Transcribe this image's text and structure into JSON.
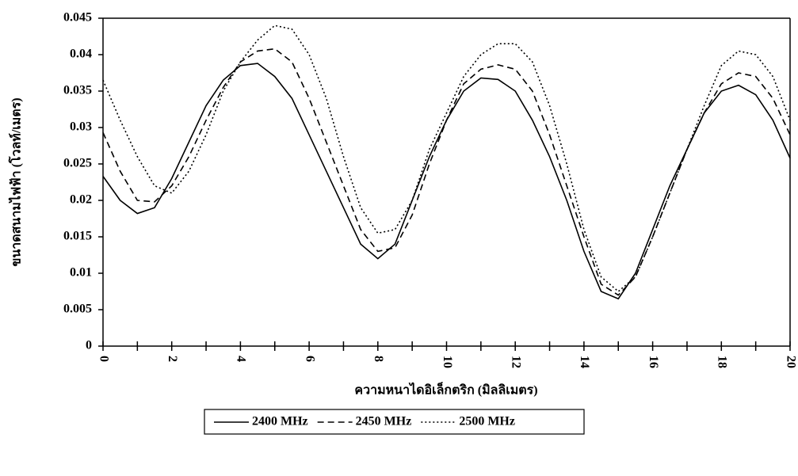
{
  "chart_data": {
    "type": "line",
    "x_label": "ความหนาไดอิเล็กตริก (มิลลิเมตร)",
    "y_label": "ขนาดสนามไฟฟ้า (โวลท์/เมตร)",
    "x": [
      0,
      0.5,
      1,
      1.5,
      2,
      2.5,
      3,
      3.5,
      4,
      4.5,
      5,
      5.5,
      6,
      6.5,
      7,
      7.5,
      8,
      8.5,
      9,
      9.5,
      10,
      10.5,
      11,
      11.5,
      12,
      12.5,
      13,
      13.5,
      14,
      14.5,
      15,
      15.5,
      16,
      16.5,
      17,
      17.5,
      18,
      18.5,
      19,
      19.5,
      20
    ],
    "series": [
      {
        "name": "2400 MHz",
        "color": "#000000",
        "dash": "solid",
        "values": [
          0.0233,
          0.02,
          0.0182,
          0.019,
          0.023,
          0.028,
          0.033,
          0.0365,
          0.0385,
          0.0388,
          0.037,
          0.034,
          0.029,
          0.024,
          0.019,
          0.014,
          0.012,
          0.014,
          0.02,
          0.026,
          0.031,
          0.035,
          0.0368,
          0.0366,
          0.035,
          0.031,
          0.026,
          0.02,
          0.013,
          0.0075,
          0.0065,
          0.01,
          0.016,
          0.022,
          0.027,
          0.032,
          0.035,
          0.0358,
          0.0345,
          0.031,
          0.0258
        ]
      },
      {
        "name": "2450 MHz",
        "color": "#000000",
        "dash": "dashed",
        "values": [
          0.0293,
          0.024,
          0.02,
          0.0198,
          0.022,
          0.026,
          0.031,
          0.0355,
          0.039,
          0.0405,
          0.0408,
          0.039,
          0.034,
          0.028,
          0.022,
          0.016,
          0.013,
          0.0135,
          0.018,
          0.025,
          0.031,
          0.036,
          0.038,
          0.0386,
          0.038,
          0.035,
          0.029,
          0.022,
          0.015,
          0.0085,
          0.007,
          0.0095,
          0.015,
          0.021,
          0.027,
          0.032,
          0.036,
          0.0375,
          0.037,
          0.034,
          0.029
        ]
      },
      {
        "name": "2500 MHz",
        "color": "#000000",
        "dash": "dotted",
        "values": [
          0.0365,
          0.031,
          0.026,
          0.022,
          0.021,
          0.024,
          0.029,
          0.035,
          0.039,
          0.042,
          0.044,
          0.0435,
          0.04,
          0.034,
          0.026,
          0.019,
          0.0155,
          0.016,
          0.02,
          0.027,
          0.032,
          0.037,
          0.04,
          0.0415,
          0.0415,
          0.039,
          0.033,
          0.025,
          0.016,
          0.0095,
          0.0075,
          0.0095,
          0.015,
          0.021,
          0.027,
          0.033,
          0.0385,
          0.0405,
          0.04,
          0.037,
          0.031
        ]
      }
    ],
    "xlim": [
      0,
      20
    ],
    "xticks": [
      0,
      2,
      4,
      6,
      8,
      10,
      12,
      14,
      16,
      18,
      20
    ],
    "x_minor_ticks": [
      1,
      3,
      5,
      7,
      9,
      11,
      13,
      15,
      17,
      19
    ],
    "ylim": [
      0,
      0.045
    ],
    "yticks": [
      0,
      0.005,
      0.01,
      0.015,
      0.02,
      0.025,
      0.03,
      0.035,
      0.04,
      0.045
    ],
    "grid": false,
    "legend": "bottom"
  }
}
